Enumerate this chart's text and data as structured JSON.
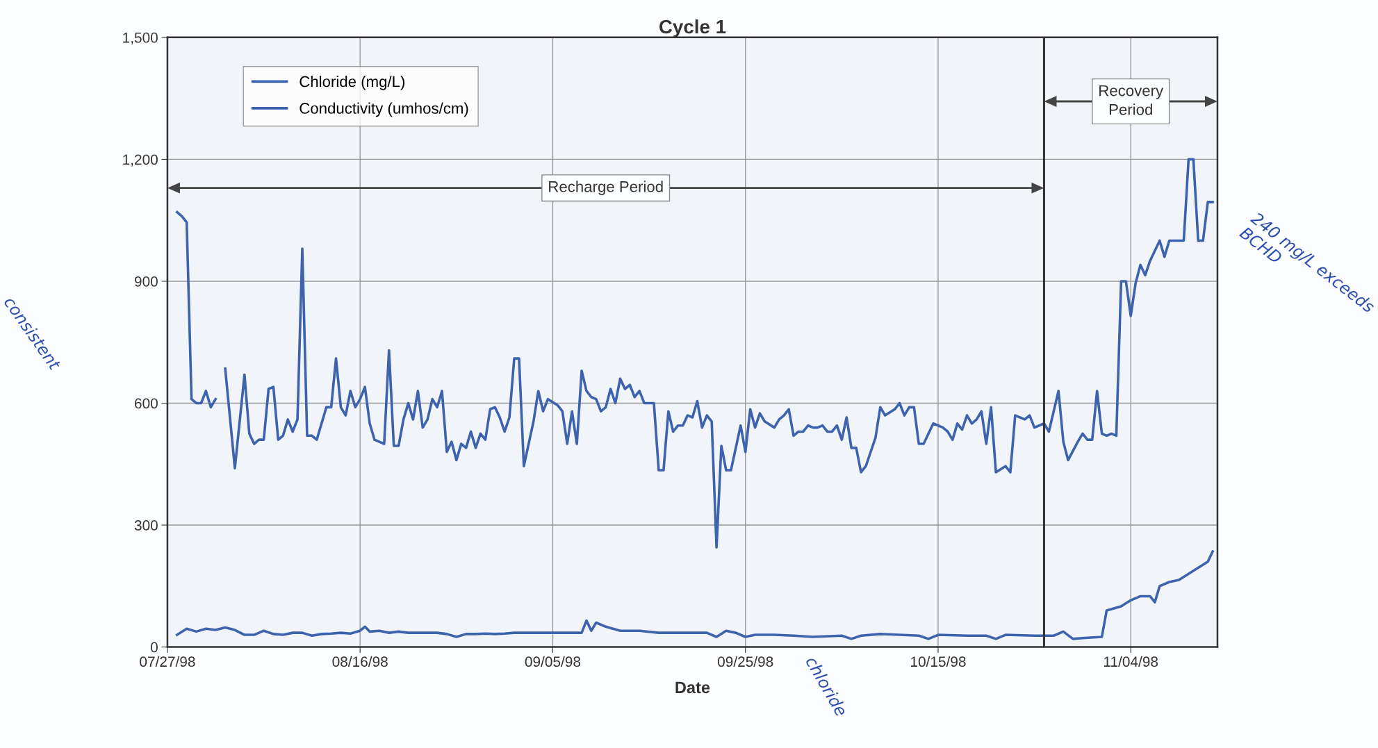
{
  "chart_data": {
    "type": "line",
    "title": "Cycle 1",
    "xlabel": "Date",
    "xlim": [
      "1998-07-27",
      "1998-11-13"
    ],
    "xticks": [
      {
        "value": "1998-07-27",
        "label": "07/27/98"
      },
      {
        "value": "1998-08-16",
        "label": "08/16/98"
      },
      {
        "value": "1998-09-05",
        "label": "09/05/98"
      },
      {
        "value": "1998-09-25",
        "label": "09/25/98"
      },
      {
        "value": "1998-10-15",
        "label": "10/15/98"
      },
      {
        "value": "1998-11-04",
        "label": "11/04/98"
      }
    ],
    "ylim": [
      0,
      1500
    ],
    "yticks": [
      0,
      300,
      600,
      900,
      {
        "value": 1200,
        "label": "1,200"
      },
      {
        "value": 1500,
        "label": "1,500"
      }
    ],
    "grid": true,
    "legend": "top left",
    "line_style": "solid",
    "series": [
      {
        "name": "Chloride (mg/L)",
        "color": "#3d63ad",
        "x": [
          "1998-07-28",
          "1998-07-29",
          "1998-07-30",
          "1998-07-31",
          "1998-08-01",
          "1998-08-02",
          "1998-08-03",
          "1998-08-04",
          "1998-08-05",
          "1998-08-06",
          "1998-08-07",
          "1998-08-08",
          "1998-08-09",
          "1998-08-10",
          "1998-08-11",
          "1998-08-12",
          "1998-08-13",
          "1998-08-14",
          "1998-08-15",
          "1998-08-16",
          "1998-08-16T12:00",
          "1998-08-17",
          "1998-08-18",
          "1998-08-19",
          "1998-08-20",
          "1998-08-21",
          "1998-08-22",
          "1998-08-23",
          "1998-08-24",
          "1998-08-25",
          "1998-08-26",
          "1998-08-27",
          "1998-08-28",
          "1998-08-29",
          "1998-08-30",
          "1998-08-31",
          "1998-09-01",
          "1998-09-03",
          "1998-09-05",
          "1998-09-07",
          "1998-09-08",
          "1998-09-08T12:00",
          "1998-09-09",
          "1998-09-09T12:00",
          "1998-09-10T12:00",
          "1998-09-12",
          "1998-09-14",
          "1998-09-16",
          "1998-09-18",
          "1998-09-21",
          "1998-09-22",
          "1998-09-23",
          "1998-09-24",
          "1998-09-25",
          "1998-09-26",
          "1998-09-28",
          "1998-09-30",
          "1998-10-02",
          "1998-10-05",
          "1998-10-06",
          "1998-10-07",
          "1998-10-09",
          "1998-10-11",
          "1998-10-13",
          "1998-10-14",
          "1998-10-15",
          "1998-10-18",
          "1998-10-20",
          "1998-10-21",
          "1998-10-22",
          "1998-10-25",
          "1998-10-27",
          "1998-10-28",
          "1998-10-29",
          "1998-10-30",
          "1998-11-01",
          "1998-11-01T12:00",
          "1998-11-03",
          "1998-11-04",
          "1998-11-05",
          "1998-11-06",
          "1998-11-06T12:00",
          "1998-11-07",
          "1998-11-08",
          "1998-11-09",
          "1998-11-10",
          "1998-11-11",
          "1998-11-12",
          "1998-11-12T12:00"
        ],
        "values": [
          30,
          45,
          38,
          45,
          42,
          48,
          42,
          30,
          30,
          40,
          32,
          30,
          35,
          35,
          28,
          32,
          33,
          35,
          33,
          40,
          50,
          38,
          40,
          35,
          38,
          35,
          35,
          35,
          35,
          32,
          25,
          32,
          32,
          33,
          32,
          33,
          35,
          35,
          35,
          35,
          35,
          65,
          40,
          60,
          50,
          40,
          40,
          35,
          35,
          35,
          25,
          40,
          35,
          25,
          30,
          30,
          28,
          25,
          28,
          20,
          28,
          32,
          30,
          28,
          20,
          30,
          28,
          28,
          20,
          30,
          28,
          28,
          38,
          20,
          22,
          25,
          90,
          100,
          115,
          125,
          125,
          110,
          150,
          160,
          165,
          180,
          195,
          210,
          235
        ]
      },
      {
        "name": "Conductivity (umhos/cm)",
        "color": "#3d63ad",
        "x": [
          "1998-07-28T00:00",
          "1998-07-28T12:00",
          "1998-07-29T00:00",
          "1998-07-29T12:00",
          "1998-07-30T00:00",
          "1998-07-30T12:00",
          "1998-07-31T00:00",
          "1998-07-31T12:00",
          "1998-08-01T00:00",
          "1998-08-01T12:00",
          "1998-08-02T00:00",
          "1998-08-03T00:00",
          "1998-08-04T00:00",
          "1998-08-04T12:00",
          "1998-08-05T00:00",
          "1998-08-05T12:00",
          "1998-08-06T00:00",
          "1998-08-06T12:00",
          "1998-08-07T00:00",
          "1998-08-07T12:00",
          "1998-08-08T00:00",
          "1998-08-08T12:00",
          "1998-08-09T00:00",
          "1998-08-09T12:00",
          "1998-08-10T00:00",
          "1998-08-10T12:00",
          "1998-08-11T00:00",
          "1998-08-11T12:00",
          "1998-08-12T12:00",
          "1998-08-13T00:00",
          "1998-08-13T12:00",
          "1998-08-14T00:00",
          "1998-08-14T12:00",
          "1998-08-15T00:00",
          "1998-08-15T12:00",
          "1998-08-16T00:00",
          "1998-08-16T12:00",
          "1998-08-17T00:00",
          "1998-08-17T12:00",
          "1998-08-18T00:00",
          "1998-08-18T12:00",
          "1998-08-19T00:00",
          "1998-08-19T12:00",
          "1998-08-20T00:00",
          "1998-08-20T12:00",
          "1998-08-21T00:00",
          "1998-08-21T12:00",
          "1998-08-22T00:00",
          "1998-08-22T12:00",
          "1998-08-23T00:00",
          "1998-08-23T12:00",
          "1998-08-24T00:00",
          "1998-08-24T12:00",
          "1998-08-25T00:00",
          "1998-08-25T12:00",
          "1998-08-26T00:00",
          "1998-08-26T12:00",
          "1998-08-27T00:00",
          "1998-08-27T12:00",
          "1998-08-28T00:00",
          "1998-08-28T12:00",
          "1998-08-29T00:00",
          "1998-08-29T12:00",
          "1998-08-30T00:00",
          "1998-08-30T12:00",
          "1998-08-31T00:00",
          "1998-08-31T12:00",
          "1998-09-01T00:00",
          "1998-09-01T12:00",
          "1998-09-02T00:00",
          "1998-09-03T00:00",
          "1998-09-03T12:00",
          "1998-09-04T00:00",
          "1998-09-04T12:00",
          "1998-09-05T12:00",
          "1998-09-06T00:00",
          "1998-09-06T12:00",
          "1998-09-07T00:00",
          "1998-09-07T12:00",
          "1998-09-08T00:00",
          "1998-09-08T12:00",
          "1998-09-09T00:00",
          "1998-09-09T12:00",
          "1998-09-10T00:00",
          "1998-09-10T12:00",
          "1998-09-11T00:00",
          "1998-09-11T12:00",
          "1998-09-12T00:00",
          "1998-09-12T12:00",
          "1998-09-13T00:00",
          "1998-09-13T12:00",
          "1998-09-14T00:00",
          "1998-09-14T12:00",
          "1998-09-15T12:00",
          "1998-09-16T00:00",
          "1998-09-16T12:00",
          "1998-09-17T00:00",
          "1998-09-17T12:00",
          "1998-09-18T00:00",
          "1998-09-18T12:00",
          "1998-09-19T00:00",
          "1998-09-19T12:00",
          "1998-09-20T00:00",
          "1998-09-20T12:00",
          "1998-09-21T00:00",
          "1998-09-21T12:00",
          "1998-09-22T00:00",
          "1998-09-22T12:00",
          "1998-09-23T00:00",
          "1998-09-23T12:00",
          "1998-09-24T12:00",
          "1998-09-25T00:00",
          "1998-09-25T12:00",
          "1998-09-26T00:00",
          "1998-09-26T12:00",
          "1998-09-27T00:00",
          "1998-09-28T00:00",
          "1998-09-28T12:00",
          "1998-09-29T00:00",
          "1998-09-29T12:00",
          "1998-09-30T00:00",
          "1998-09-30T12:00",
          "1998-10-01T00:00",
          "1998-10-01T12:00",
          "1998-10-02T00:00",
          "1998-10-02T12:00",
          "1998-10-03T00:00",
          "1998-10-03T12:00",
          "1998-10-04T00:00",
          "1998-10-04T12:00",
          "1998-10-05T00:00",
          "1998-10-05T12:00",
          "1998-10-06T00:00",
          "1998-10-06T12:00",
          "1998-10-07T00:00",
          "1998-10-07T12:00",
          "1998-10-08T12:00",
          "1998-10-09T00:00",
          "1998-10-09T12:00",
          "1998-10-10T12:00",
          "1998-10-11T00:00",
          "1998-10-11T12:00",
          "1998-10-12T00:00",
          "1998-10-12T12:00",
          "1998-10-13T00:00",
          "1998-10-13T12:00",
          "1998-10-14T12:00",
          "1998-10-15T00:00",
          "1998-10-15T12:00",
          "1998-10-16T00:00",
          "1998-10-16T12:00",
          "1998-10-17T00:00",
          "1998-10-17T12:00",
          "1998-10-18T00:00",
          "1998-10-18T12:00",
          "1998-10-19T00:00",
          "1998-10-19T12:00",
          "1998-10-20T00:00",
          "1998-10-20T12:00",
          "1998-10-21T00:00",
          "1998-10-22T00:00",
          "1998-10-22T12:00",
          "1998-10-23T00:00",
          "1998-10-24T00:00",
          "1998-10-24T12:00",
          "1998-10-25T00:00",
          "1998-10-26T00:00",
          "1998-10-26T12:00",
          "1998-10-27T12:00",
          "1998-10-28T00:00",
          "1998-10-28T12:00",
          "1998-10-29T12:00",
          "1998-10-30T00:00",
          "1998-10-30T12:00",
          "1998-10-31T00:00",
          "1998-10-31T12:00",
          "1998-11-01T00:00",
          "1998-11-01T12:00",
          "1998-11-02T00:00",
          "1998-11-02T12:00",
          "1998-11-03T00:00",
          "1998-11-03T12:00",
          "1998-11-04T00:00",
          "1998-11-04T12:00",
          "1998-11-05T00:00",
          "1998-11-05T12:00",
          "1998-11-06T00:00",
          "1998-11-07T00:00",
          "1998-11-07T12:00",
          "1998-11-08T00:00",
          "1998-11-08T12:00",
          "1998-11-09T12:00",
          "1998-11-10T00:00",
          "1998-11-10T12:00",
          "1998-11-11T00:00",
          "1998-11-11T12:00",
          "1998-11-12T00:00",
          "1998-11-12T12:00"
        ],
        "values": [
          1070,
          1060,
          1045,
          610,
          600,
          600,
          630,
          590,
          610,
          null,
          685,
          440,
          670,
          525,
          500,
          510,
          510,
          635,
          640,
          510,
          520,
          560,
          530,
          560,
          980,
          520,
          520,
          510,
          590,
          590,
          710,
          590,
          570,
          630,
          590,
          610,
          640,
          550,
          510,
          505,
          500,
          730,
          495,
          495,
          560,
          600,
          560,
          630,
          540,
          560,
          610,
          590,
          630,
          480,
          505,
          460,
          500,
          490,
          530,
          490,
          525,
          510,
          585,
          590,
          565,
          530,
          565,
          710,
          710,
          445,
          555,
          630,
          580,
          610,
          595,
          580,
          500,
          580,
          500,
          680,
          630,
          615,
          610,
          580,
          590,
          635,
          600,
          660,
          635,
          645,
          615,
          630,
          600,
          600,
          435,
          435,
          580,
          530,
          545,
          545,
          570,
          565,
          605,
          540,
          570,
          555,
          245,
          495,
          435,
          435,
          545,
          480,
          585,
          540,
          575,
          555,
          540,
          560,
          570,
          585,
          520,
          530,
          530,
          545,
          540,
          540,
          545,
          530,
          530,
          545,
          510,
          565,
          490,
          490,
          430,
          445,
          515,
          590,
          570,
          585,
          600,
          570,
          590,
          590,
          500,
          500,
          550,
          545,
          540,
          530,
          510,
          550,
          535,
          570,
          550,
          560,
          580,
          500,
          590,
          430,
          445,
          430,
          570,
          560,
          570,
          540,
          550,
          530,
          630,
          505,
          460,
          505,
          525,
          510,
          510,
          630,
          525,
          520,
          525,
          520,
          900,
          900,
          815,
          895,
          940,
          915,
          950,
          1000,
          960,
          1000,
          1000,
          1000,
          1200,
          1200,
          1000,
          1000,
          1095,
          1095
        ]
      }
    ],
    "ref_lines": [
      {
        "axis": "x",
        "value": "1998-10-26",
        "color": "#333333"
      }
    ],
    "bands": [
      {
        "axis": "x",
        "from": "1998-07-27",
        "to": "1998-10-26",
        "label": "Recharge Period",
        "color": "#f1f4f9"
      },
      {
        "axis": "x",
        "from": "1998-10-26",
        "to": "1998-11-13",
        "label": "Recovery\nPeriod",
        "color": "#f1f4f9"
      }
    ],
    "annotations": [
      "consistent",
      "240 mg/L exceeds BCHD",
      "chloride"
    ]
  }
}
